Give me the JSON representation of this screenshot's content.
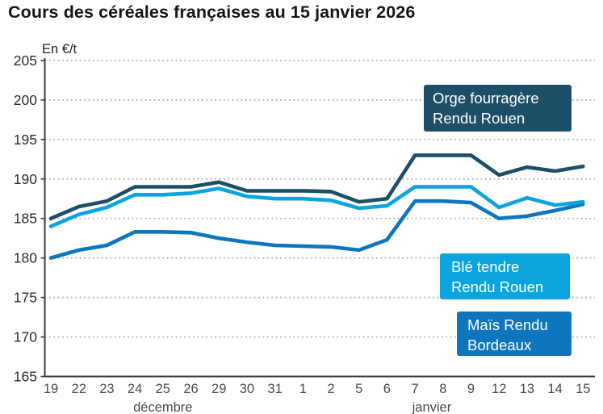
{
  "title": "Cours des céréales françaises au 15 janvier 2026",
  "unit_label": "En €/t",
  "colors": {
    "orge": "#1d4f68",
    "ble": "#0ba4de",
    "mais": "#0e76bd",
    "grid": "#ababab",
    "axis": "#3c3c3c",
    "y_tick_text": "#2a2a2a",
    "x_tick_text": "#4b4b4b",
    "title_text": "#161616"
  },
  "legends": {
    "orge": {
      "line1": "Orge fourragère",
      "line2": "Rendu Rouen",
      "color": "#1d4f68"
    },
    "ble": {
      "line1": "Blé tendre",
      "line2": "Rendu Rouen",
      "color": "#0ba4de"
    },
    "mais": {
      "line1": "Maïs Rendu",
      "line2": "Bordeaux",
      "color": "#0e76bd"
    }
  },
  "chart_data": {
    "type": "line",
    "title": "Cours des céréales françaises au 15 janvier 2026",
    "ylabel": "En €/t",
    "xlabel": "",
    "ylim": [
      165,
      205
    ],
    "ytick_step": 5,
    "grid": "dotted horizontal gridlines",
    "legend_position": "overlaid colored boxes at right",
    "x": [
      "19",
      "22",
      "23",
      "24",
      "25",
      "26",
      "29",
      "30",
      "31",
      "1",
      "2",
      "5",
      "6",
      "7",
      "8",
      "9",
      "12",
      "13",
      "14",
      "15"
    ],
    "month_labels": [
      {
        "label": "décembre",
        "tick_index": 4
      },
      {
        "label": "janvier",
        "tick_index": 13.6
      }
    ],
    "series": [
      {
        "name": "Maïs Rendu Bordeaux",
        "color": "#0e76bd",
        "values": [
          180.0,
          181.0,
          181.6,
          183.3,
          183.3,
          183.2,
          182.5,
          182.0,
          181.6,
          181.5,
          181.4,
          181.0,
          182.3,
          187.2,
          187.2,
          187.0,
          185.0,
          185.3,
          186.0,
          186.8
        ]
      },
      {
        "name": "Blé tendre Rendu Rouen",
        "color": "#0ba4de",
        "values": [
          184.0,
          185.5,
          186.4,
          188.0,
          188.0,
          188.2,
          188.8,
          187.8,
          187.5,
          187.5,
          187.3,
          186.3,
          186.6,
          189.0,
          189.0,
          189.0,
          186.4,
          187.6,
          186.7,
          187.1
        ]
      },
      {
        "name": "Orge fourragère Rendu Rouen",
        "color": "#1d4f68",
        "values": [
          185.0,
          186.5,
          187.2,
          189.0,
          189.0,
          189.0,
          189.6,
          188.5,
          188.5,
          188.5,
          188.4,
          187.1,
          187.5,
          193.0,
          193.0,
          193.0,
          190.5,
          191.5,
          191.0,
          191.6
        ]
      }
    ]
  }
}
